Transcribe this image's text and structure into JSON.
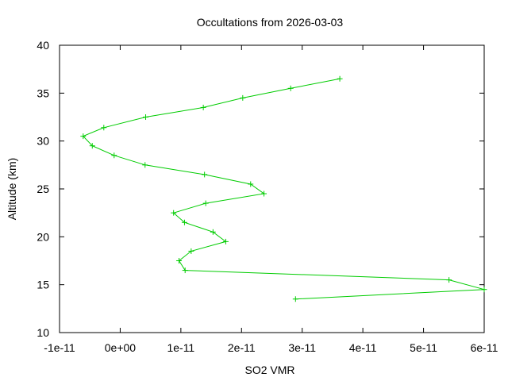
{
  "chart_data": {
    "type": "line",
    "title": "Occultations from 2026-03-03",
    "xlabel": "SO2 VMR",
    "ylabel": "Altitude (km)",
    "xlim": [
      -1e-11,
      6e-11
    ],
    "ylim": [
      10,
      40
    ],
    "xticks": [
      {
        "value": -1e-11,
        "label": "-1e-11"
      },
      {
        "value": 0,
        "label": "0e+00"
      },
      {
        "value": 1e-11,
        "label": "1e-11"
      },
      {
        "value": 2e-11,
        "label": "2e-11"
      },
      {
        "value": 3e-11,
        "label": "3e-11"
      },
      {
        "value": 4e-11,
        "label": "4e-11"
      },
      {
        "value": 5e-11,
        "label": "5e-11"
      },
      {
        "value": 6e-11,
        "label": "6e-11"
      }
    ],
    "yticks": [
      {
        "value": 10,
        "label": "10"
      },
      {
        "value": 15,
        "label": "15"
      },
      {
        "value": 20,
        "label": "20"
      },
      {
        "value": 25,
        "label": "25"
      },
      {
        "value": 30,
        "label": "30"
      },
      {
        "value": 35,
        "label": "35"
      },
      {
        "value": 40,
        "label": "40"
      }
    ],
    "grid": false,
    "legend": "none",
    "series": [
      {
        "color": "#00cc00",
        "marker": "plus",
        "points": [
          {
            "x": 3.62e-11,
            "y": 36.5
          },
          {
            "x": 2.81e-11,
            "y": 35.5
          },
          {
            "x": 2.02e-11,
            "y": 34.5
          },
          {
            "x": 1.37e-11,
            "y": 33.5
          },
          {
            "x": 4.2e-12,
            "y": 32.5
          },
          {
            "x": -2.7e-12,
            "y": 31.4
          },
          {
            "x": -6.1e-12,
            "y": 30.5
          },
          {
            "x": -4.6e-12,
            "y": 29.5
          },
          {
            "x": -1e-12,
            "y": 28.5
          },
          {
            "x": 4.1e-12,
            "y": 27.5
          },
          {
            "x": 1.39e-11,
            "y": 26.5
          },
          {
            "x": 2.15e-11,
            "y": 25.5
          },
          {
            "x": 2.37e-11,
            "y": 24.5
          },
          {
            "x": 1.41e-11,
            "y": 23.5
          },
          {
            "x": 8.8e-12,
            "y": 22.5
          },
          {
            "x": 1.06e-11,
            "y": 21.5
          },
          {
            "x": 1.53e-11,
            "y": 20.5
          },
          {
            "x": 1.74e-11,
            "y": 19.5
          },
          {
            "x": 1.17e-11,
            "y": 18.5
          },
          {
            "x": 9.7e-12,
            "y": 17.5
          },
          {
            "x": 1.07e-11,
            "y": 16.5
          },
          {
            "x": 5.42e-11,
            "y": 15.5
          },
          {
            "x": 6e-11,
            "y": 14.5
          },
          {
            "x": 2.89e-11,
            "y": 13.5
          }
        ]
      }
    ]
  }
}
